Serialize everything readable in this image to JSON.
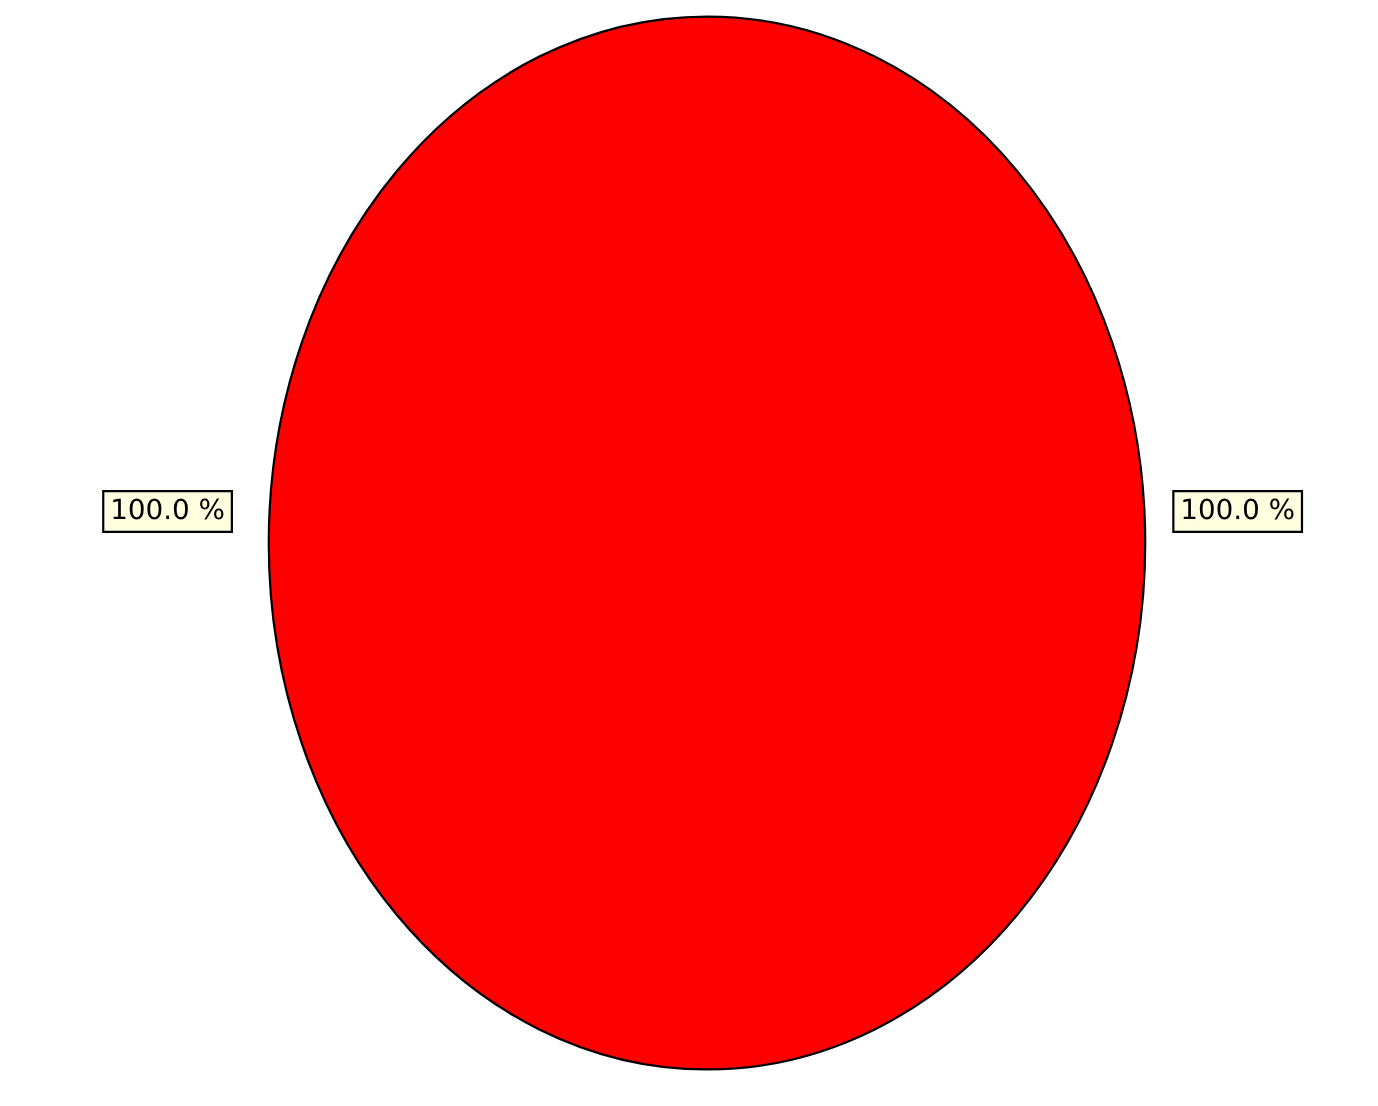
{
  "chart_data": {
    "type": "pie",
    "categories": [
      null
    ],
    "values": [
      100
    ],
    "colors": [
      "#ff0000"
    ],
    "value_labels": [
      "100.0 %"
    ],
    "annotations": [
      "100.0 %"
    ]
  }
}
